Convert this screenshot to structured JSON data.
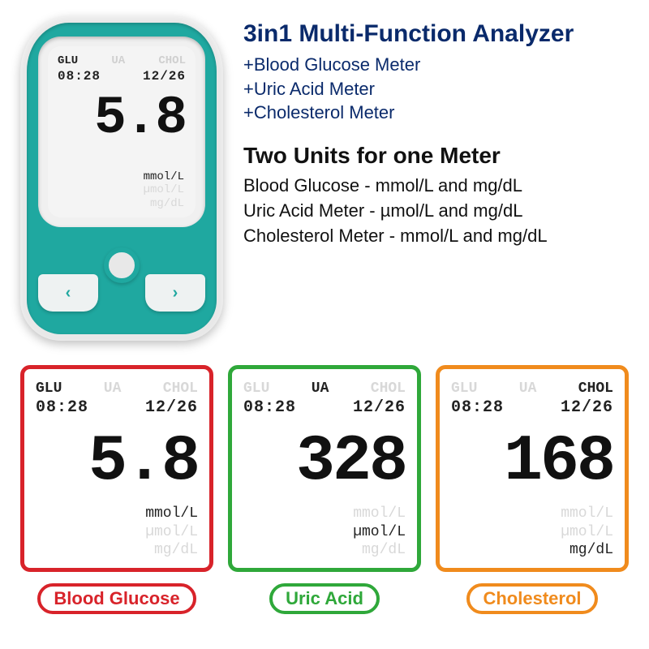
{
  "headings": {
    "title1": "3in1 Multi-Function Analyzer",
    "plus1": "+Blood Glucose Meter",
    "plus2": "+Uric Acid Meter",
    "plus3": "+Cholesterol Meter",
    "title2": "Two Units for one Meter",
    "line1": "Blood Glucose - mmol/L and mg/dL",
    "line2": "Uric Acid Meter - µmol/L and mg/dL",
    "line3": "Cholesterol Meter - mmol/L and mg/dL"
  },
  "colors": {
    "heading_blue": "#0a2a6b",
    "black": "#111111",
    "device_teal": "#1fa8a0",
    "device_grey": "#e8e8e8",
    "dim": "#d8d8d8",
    "glucose": "#d8232a",
    "uric": "#2fa83a",
    "chol": "#f08b1d"
  },
  "screen_labels": {
    "glu": "GLU",
    "ua": "UA",
    "chol": "CHOL",
    "units": {
      "mmol": "mmol/L",
      "umol": "µmol/L",
      "mgdl": "mg/dL"
    }
  },
  "device": {
    "time": "08:28",
    "date": "12/26",
    "value": "5.8",
    "active_mode": "GLU",
    "active_unit": "mmol/L"
  },
  "panels": [
    {
      "id": "glucose",
      "color": "#d8232a",
      "label": "Blood Glucose",
      "active_mode": "GLU",
      "time": "08:28",
      "date": "12/26",
      "value": "5.8",
      "active_unit": "mmol/L"
    },
    {
      "id": "uric",
      "color": "#2fa83a",
      "label": "Uric Acid",
      "active_mode": "UA",
      "time": "08:28",
      "date": "12/26",
      "value": "328",
      "active_unit": "µmol/L"
    },
    {
      "id": "chol",
      "color": "#f08b1d",
      "label": "Cholesterol",
      "active_mode": "CHOL",
      "time": "08:28",
      "date": "12/26",
      "value": "168",
      "active_unit": "mg/dL"
    }
  ]
}
